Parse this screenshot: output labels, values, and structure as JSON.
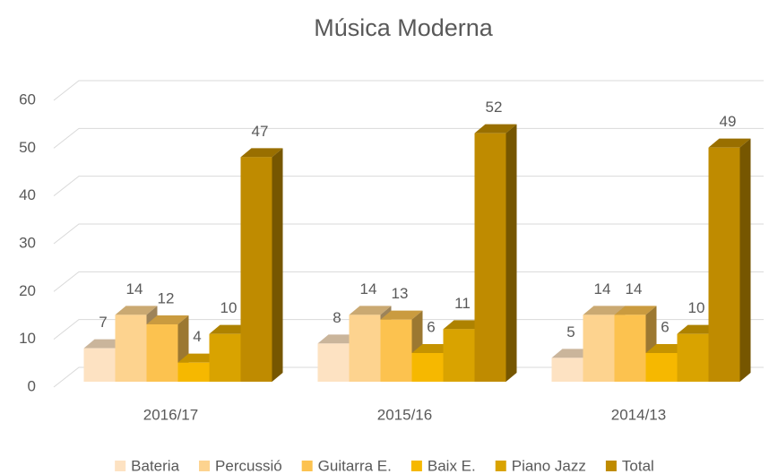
{
  "chart_data": {
    "type": "bar3d",
    "title": "Música Moderna",
    "categories": [
      "2016/17",
      "2015/16",
      "2014/13"
    ],
    "series": [
      {
        "name": "Bateria",
        "color": "#fde2c2",
        "values": [
          7,
          8,
          5
        ]
      },
      {
        "name": "Percussió",
        "color": "#fdd38f",
        "values": [
          14,
          14,
          14
        ]
      },
      {
        "name": "Guitarra E.",
        "color": "#fcc24f",
        "values": [
          12,
          13,
          14
        ]
      },
      {
        "name": "Baix E.",
        "color": "#f6b800",
        "values": [
          4,
          6,
          6
        ]
      },
      {
        "name": "Piano Jazz",
        "color": "#d9a300",
        "values": [
          10,
          11,
          10
        ]
      },
      {
        "name": "Total",
        "color": "#bf8b00",
        "values": [
          47,
          52,
          49
        ]
      }
    ],
    "ylim": [
      0,
      60
    ],
    "yticks": [
      0,
      10,
      20,
      30,
      40,
      50,
      60
    ],
    "grid": true,
    "legend": "bottom"
  }
}
